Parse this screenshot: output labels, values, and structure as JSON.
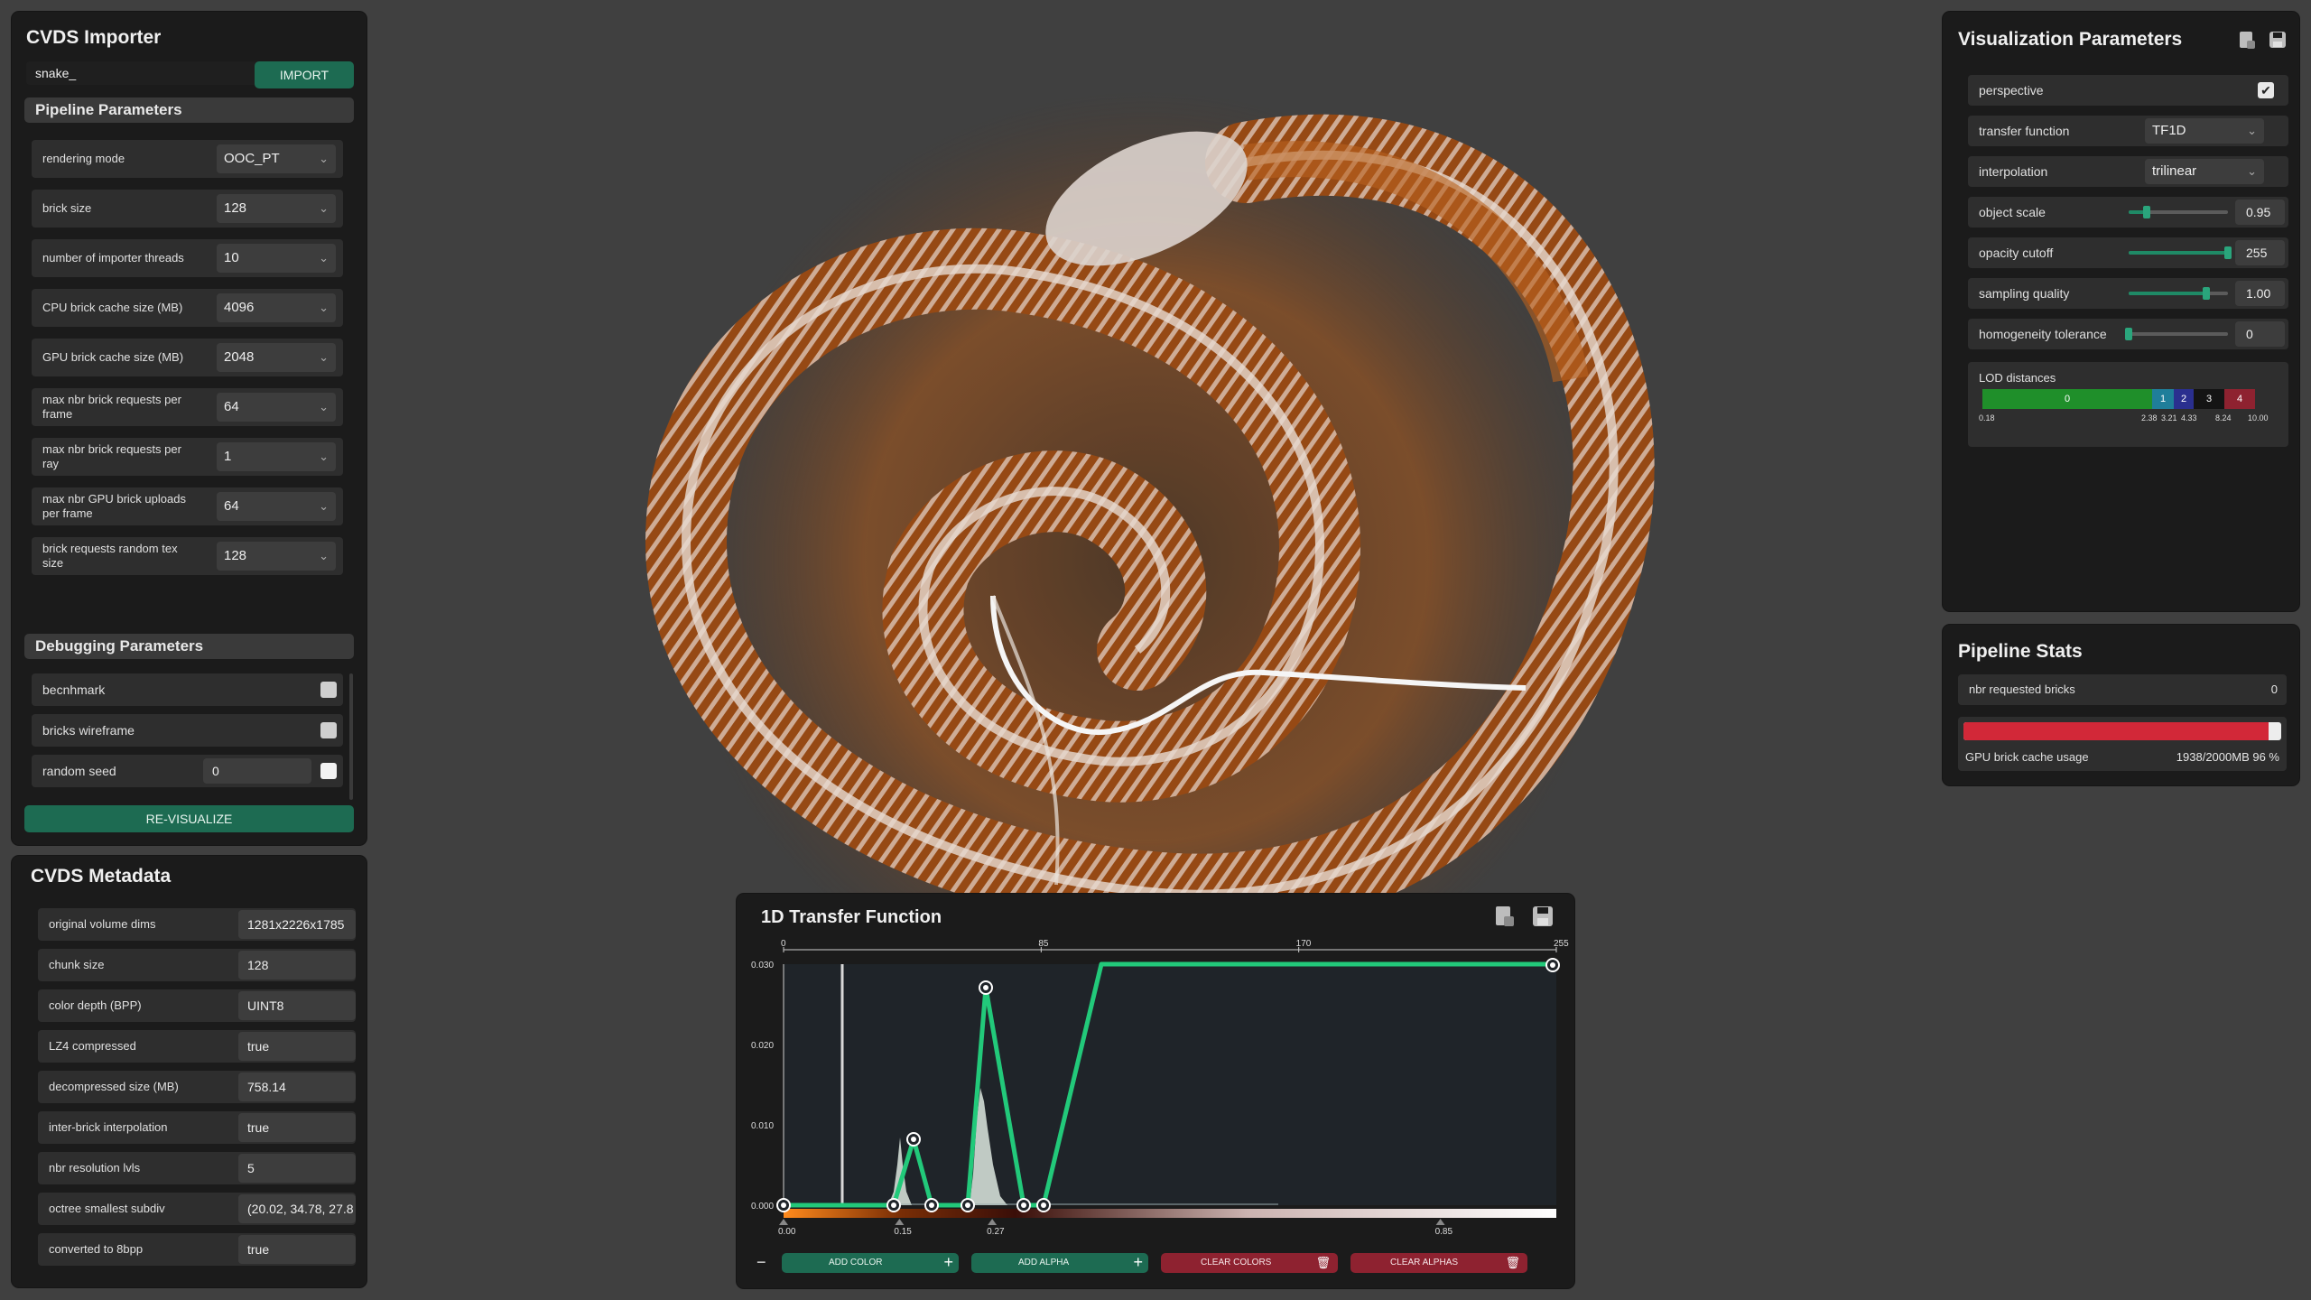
{
  "importer": {
    "title": "CVDS Importer",
    "file_input": "snake_",
    "import_button": "IMPORT",
    "pipeline_section": "Pipeline Parameters",
    "pipeline_params": [
      {
        "label": "rendering mode",
        "value": "OOC_PT"
      },
      {
        "label": "brick size",
        "value": "128"
      },
      {
        "label": "number of importer threads",
        "value": "10"
      },
      {
        "label": "CPU brick cache size (MB)",
        "value": "4096"
      },
      {
        "label": "GPU brick cache size  (MB)",
        "value": "2048"
      },
      {
        "label": "max nbr brick requests per frame",
        "value": "64"
      },
      {
        "label": "max nbr brick requests per ray",
        "value": "1"
      },
      {
        "label": "max nbr GPU brick uploads per frame",
        "value": "64"
      },
      {
        "label": "brick requests random tex size",
        "value": "128"
      }
    ],
    "debug_section": "Debugging Parameters",
    "debug_params": [
      {
        "label": "becnhmark"
      },
      {
        "label": "bricks wireframe"
      },
      {
        "label": "random seed",
        "value": "0"
      }
    ],
    "revisualize_button": "RE-VISUALIZE"
  },
  "metadata": {
    "title": "CVDS Metadata",
    "rows": [
      {
        "label": "original volume dims",
        "value": "1281x2226x1785"
      },
      {
        "label": "chunk size",
        "value": "128"
      },
      {
        "label": "color depth (BPP)",
        "value": "UINT8"
      },
      {
        "label": "LZ4 compressed",
        "value": "true"
      },
      {
        "label": "decompressed size (MB)",
        "value": "758.14"
      },
      {
        "label": "inter-brick interpolation",
        "value": "true"
      },
      {
        "label": "nbr resolution lvls",
        "value": "5"
      },
      {
        "label": "octree smallest subdiv",
        "value": "(20.02, 34.78, 27.8"
      },
      {
        "label": "converted to 8bpp",
        "value": "true"
      }
    ]
  },
  "visualization": {
    "title": "Visualization Parameters",
    "perspective_label": "perspective",
    "perspective_checked": true,
    "transfer_function_label": "transfer function",
    "transfer_function_value": "TF1D",
    "interpolation_label": "interpolation",
    "interpolation_value": "trilinear",
    "sliders": [
      {
        "label": "object scale",
        "value": "0.95",
        "fraction": 0.18
      },
      {
        "label": "opacity cutoff",
        "value": "255",
        "fraction": 1.0
      },
      {
        "label": "sampling quality",
        "value": "1.00",
        "fraction": 0.78
      },
      {
        "label": "homogeneity tolerance",
        "value": "0",
        "fraction": 0.0
      }
    ],
    "lod_label": "LOD distances",
    "lod_levels": [
      "0",
      "1",
      "2",
      "3",
      "4"
    ],
    "lod_ticks": [
      "0.18",
      "2.38",
      "3.21",
      "4.33",
      "8.24",
      "10.00"
    ]
  },
  "stats": {
    "title": "Pipeline Stats",
    "requested_label": "nbr requested bricks",
    "requested_value": "0",
    "cache_label": "GPU brick cache usage",
    "cache_value": "1938/2000MB 96 %",
    "cache_fraction": 0.96
  },
  "transfer_function": {
    "title": "1D Transfer Function",
    "x_ticks_top": [
      "0",
      "85",
      "170",
      "255"
    ],
    "y_ticks": [
      "0.030",
      "0.020",
      "0.010",
      "0.000"
    ],
    "x_ticks_bottom": [
      "0.00",
      "0.15",
      "0.27",
      "0.85"
    ],
    "add_color": "ADD COLOR",
    "add_alpha": "ADD ALPHA",
    "clear_colors": "CLEAR COLORS",
    "clear_alphas": "CLEAR ALPHAS",
    "colors": {
      "accent": "#1d6b52",
      "curve": "#22c97a",
      "danger": "#8e2230"
    }
  }
}
